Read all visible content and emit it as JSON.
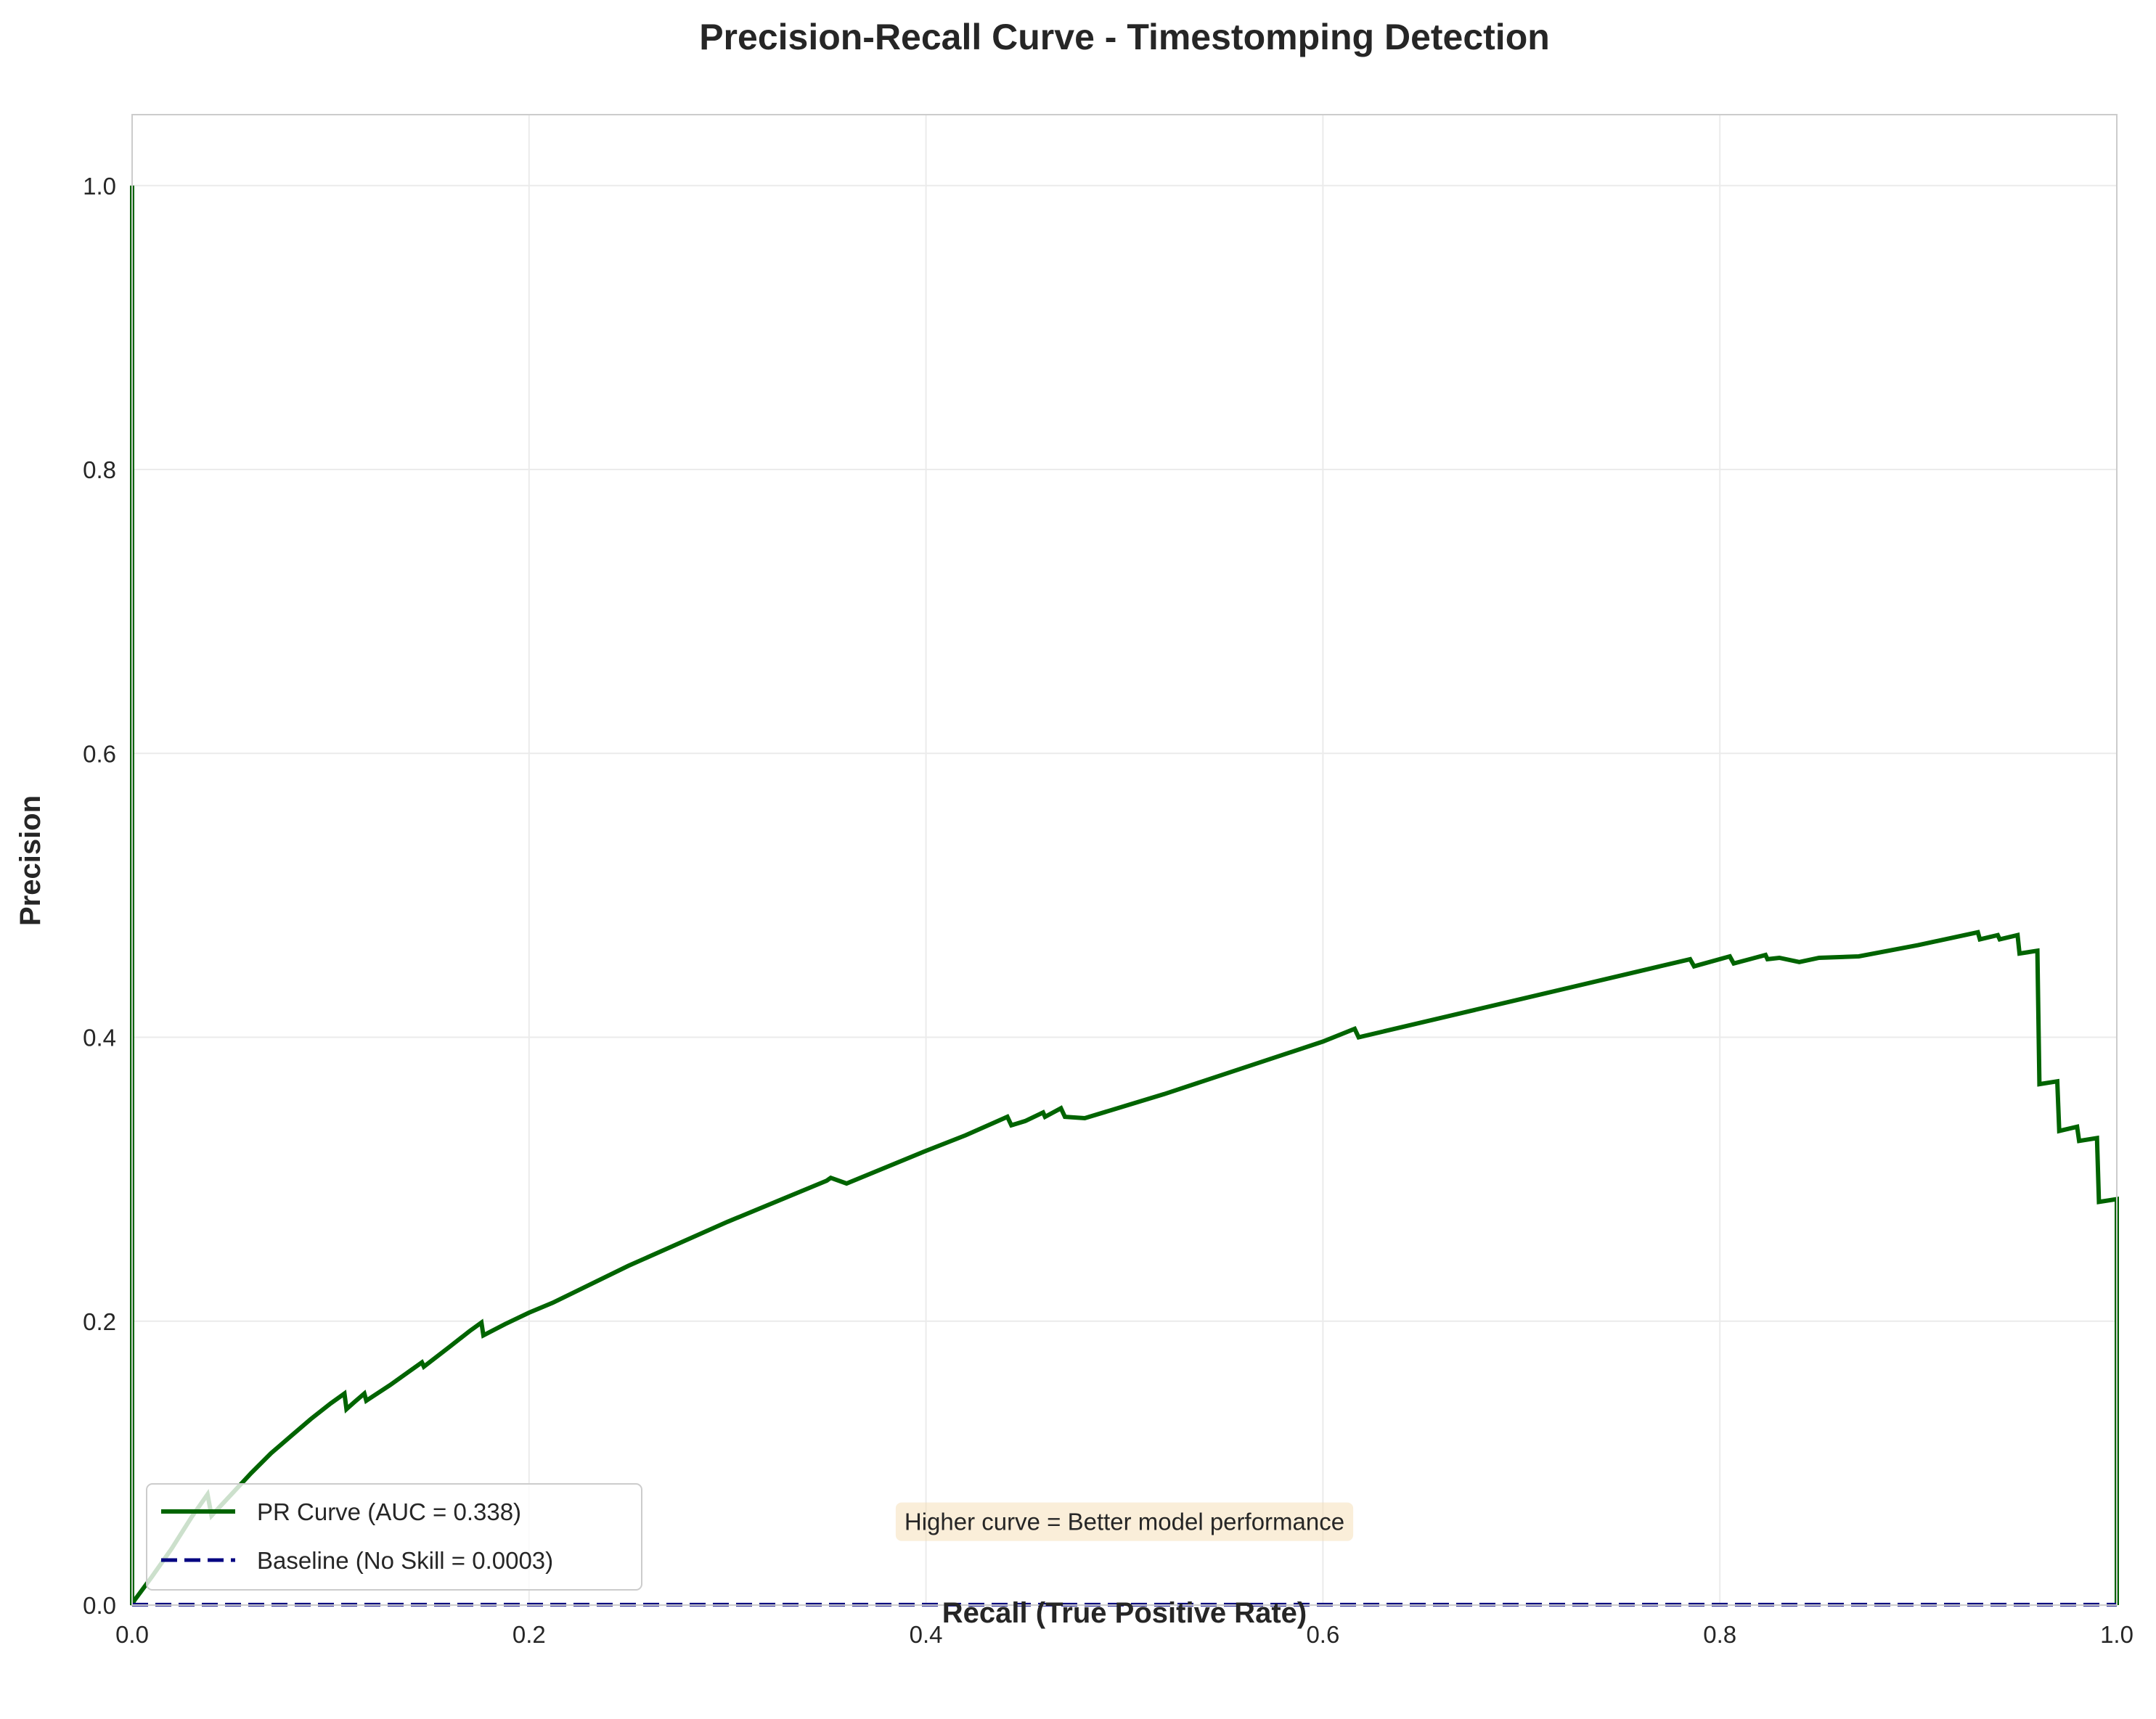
{
  "chart_data": {
    "type": "line",
    "title": "Precision-Recall Curve - Timestomping Detection",
    "xlabel": "Recall (True Positive Rate)",
    "ylabel": "Precision",
    "xlim": [
      0,
      1
    ],
    "ylim": [
      0,
      1.05
    ],
    "xticks": [
      0,
      0.2,
      0.4,
      0.6,
      0.8,
      1.0
    ],
    "xtick_labels": [
      "0.0",
      "0.2",
      "0.4",
      "0.6",
      "0.8",
      "1.0"
    ],
    "yticks": [
      0,
      0.2,
      0.4,
      0.6,
      0.8,
      1.0
    ],
    "ytick_labels": [
      "0.0",
      "0.2",
      "0.4",
      "0.6",
      "0.8",
      "1.0"
    ],
    "grid": true,
    "legend_position": "lower-left",
    "series": [
      {
        "name": "PR Curve (AUC = 0.338)",
        "color": "#006400",
        "style": "solid",
        "x": [
          0,
          0,
          0.001,
          0.01,
          0.02,
          0.03,
          0.038,
          0.04,
          0.05,
          0.06,
          0.07,
          0.08,
          0.09,
          0.1,
          0.107,
          0.108,
          0.112,
          0.117,
          0.118,
          0.13,
          0.14,
          0.146,
          0.147,
          0.16,
          0.17,
          0.176,
          0.177,
          0.188,
          0.2,
          0.212,
          0.25,
          0.3,
          0.35,
          0.352,
          0.36,
          0.4,
          0.42,
          0.441,
          0.443,
          0.45,
          0.459,
          0.46,
          0.468,
          0.47,
          0.48,
          0.52,
          0.6,
          0.616,
          0.618,
          0.7,
          0.785,
          0.787,
          0.805,
          0.807,
          0.823,
          0.824,
          0.83,
          0.84,
          0.85,
          0.87,
          0.9,
          0.93,
          0.931,
          0.94,
          0.941,
          0.95,
          0.951,
          0.96,
          0.961,
          0.97,
          0.971,
          0.98,
          0.981,
          0.99,
          0.991,
          1.0,
          1.0
        ],
        "y": [
          1.0,
          0.0,
          0.003,
          0.02,
          0.04,
          0.062,
          0.078,
          0.063,
          0.078,
          0.093,
          0.107,
          0.119,
          0.131,
          0.142,
          0.149,
          0.138,
          0.143,
          0.149,
          0.144,
          0.155,
          0.165,
          0.171,
          0.168,
          0.182,
          0.193,
          0.199,
          0.19,
          0.198,
          0.206,
          0.213,
          0.239,
          0.27,
          0.299,
          0.301,
          0.297,
          0.32,
          0.331,
          0.344,
          0.338,
          0.341,
          0.347,
          0.344,
          0.35,
          0.344,
          0.343,
          0.36,
          0.397,
          0.406,
          0.4,
          0.427,
          0.455,
          0.45,
          0.457,
          0.452,
          0.458,
          0.455,
          0.456,
          0.453,
          0.456,
          0.457,
          0.465,
          0.474,
          0.469,
          0.472,
          0.469,
          0.472,
          0.459,
          0.461,
          0.367,
          0.369,
          0.334,
          0.337,
          0.327,
          0.329,
          0.284,
          0.286,
          0.0
        ]
      },
      {
        "name": "Baseline (No Skill = 0.0003)",
        "color": "#000080",
        "style": "dashed",
        "x": [
          0,
          1
        ],
        "y": [
          0.0003,
          0.0003
        ]
      }
    ],
    "annotations": [
      {
        "text": "Higher curve = Better model performance",
        "x": 0.5,
        "y": 0.059
      }
    ]
  }
}
